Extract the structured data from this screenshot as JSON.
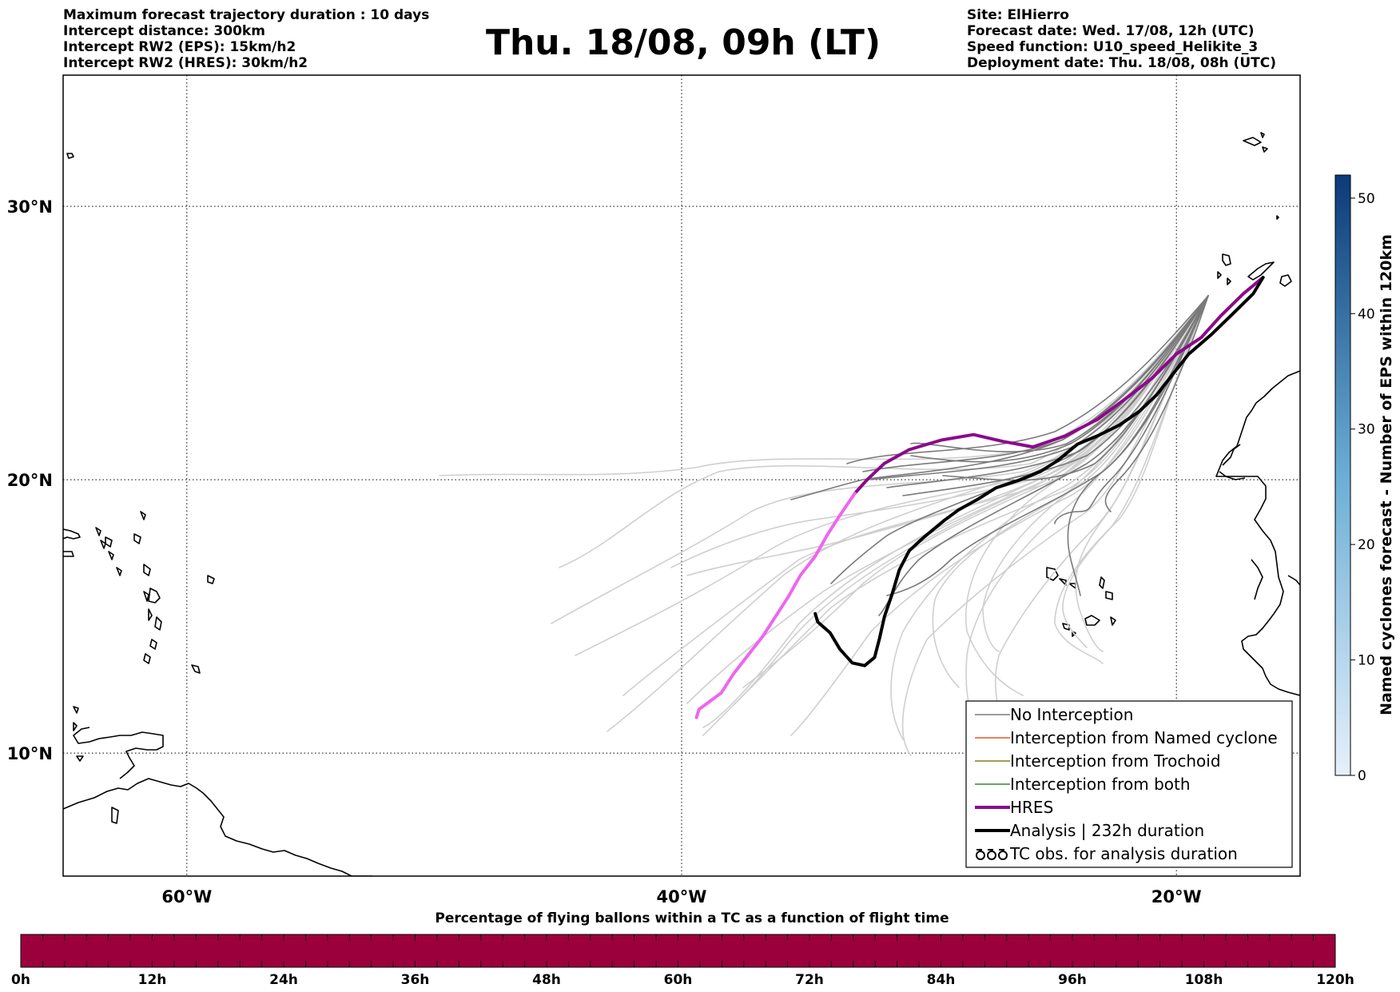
{
  "header": {
    "left_lines": [
      "Maximum forecast trajectory duration : 10 days",
      "Intercept distance: 300km",
      "Intercept RW2 (EPS):  15km/h2",
      "Intercept RW2 (HRES): 30km/h2"
    ],
    "title": "Thu. 18/08, 09h (LT)",
    "right_lines": [
      "Site: ElHierro",
      "Forecast date: Wed. 17/08, 12h (UTC)",
      "Speed function: U10_speed_Helikite_3",
      "Deployment date: Thu. 18/08, 08h (UTC)"
    ]
  },
  "map": {
    "lon_range": [
      -65,
      -15
    ],
    "lat_range": [
      5.5,
      34.8
    ],
    "lon_ticks": [
      {
        "value": -60,
        "label": "60°W"
      },
      {
        "value": -40,
        "label": "40°W"
      },
      {
        "value": -20,
        "label": "20°W"
      }
    ],
    "lat_ticks": [
      {
        "value": 30,
        "label": "30°N"
      },
      {
        "value": 20,
        "label": "20°N"
      },
      {
        "value": 10,
        "label": "10°N"
      }
    ],
    "grid": true
  },
  "colors": {
    "no_interception_recent": "#7a7a7a",
    "no_interception_late": "#cfcfcf",
    "named_cyclone": "#e8562a",
    "trochoid": "#7f7f22",
    "both": "#2e8b2e",
    "hres": "#8b0a8b",
    "hres_late": "#ee66ee",
    "analysis": "#000000",
    "percentage_bar": "#9c003c"
  },
  "chart_data": {
    "type": "line",
    "series": [
      {
        "name": "HRES",
        "points": [
          [
            -16.5,
            27.4
          ],
          [
            -17.3,
            26.8
          ],
          [
            -18.2,
            26.0
          ],
          [
            -19.0,
            25.2
          ],
          [
            -20.0,
            24.6
          ],
          [
            -21.0,
            23.7
          ],
          [
            -22.0,
            23.0
          ],
          [
            -23.2,
            22.2
          ],
          [
            -24.5,
            21.6
          ],
          [
            -25.8,
            21.2
          ],
          [
            -27.0,
            21.4
          ],
          [
            -28.2,
            21.65
          ],
          [
            -29.5,
            21.45
          ],
          [
            -30.8,
            21.1
          ],
          [
            -31.8,
            20.6
          ],
          [
            -32.5,
            20.0
          ],
          [
            -33.0,
            19.5
          ],
          [
            -33.6,
            18.7
          ],
          [
            -34.1,
            18.0
          ],
          [
            -34.6,
            17.2
          ],
          [
            -35.2,
            16.5
          ],
          [
            -35.7,
            15.7
          ],
          [
            -36.2,
            15.0
          ],
          [
            -36.7,
            14.3
          ],
          [
            -37.3,
            13.6
          ],
          [
            -37.9,
            12.9
          ],
          [
            -38.4,
            12.2
          ],
          [
            -39.0,
            11.8
          ],
          [
            -39.3,
            11.6
          ],
          [
            -39.4,
            11.3
          ]
        ]
      },
      {
        "name": "Analysis | 232h duration",
        "points": [
          [
            -16.5,
            27.4
          ],
          [
            -16.9,
            26.8
          ],
          [
            -17.8,
            26.0
          ],
          [
            -18.6,
            25.3
          ],
          [
            -19.5,
            24.6
          ],
          [
            -20.2,
            23.8
          ],
          [
            -20.8,
            23.1
          ],
          [
            -21.5,
            22.5
          ],
          [
            -22.3,
            22.0
          ],
          [
            -23.2,
            21.6
          ],
          [
            -24.0,
            21.3
          ],
          [
            -24.8,
            20.7
          ],
          [
            -25.5,
            20.3
          ],
          [
            -26.3,
            20.0
          ],
          [
            -27.3,
            19.7
          ],
          [
            -28.0,
            19.3
          ],
          [
            -28.8,
            18.9
          ],
          [
            -29.4,
            18.5
          ],
          [
            -30.2,
            17.9
          ],
          [
            -30.8,
            17.4
          ],
          [
            -31.2,
            16.7
          ],
          [
            -31.5,
            15.8
          ],
          [
            -31.8,
            15.0
          ],
          [
            -32.0,
            14.2
          ],
          [
            -32.2,
            13.5
          ],
          [
            -32.6,
            13.2
          ],
          [
            -33.1,
            13.3
          ],
          [
            -33.6,
            13.8
          ],
          [
            -34.0,
            14.4
          ],
          [
            -34.5,
            14.8
          ],
          [
            -34.6,
            15.1
          ]
        ]
      }
    ]
  },
  "legend": {
    "items": [
      {
        "label": "No Interception",
        "style": "thin",
        "color_key": "no_interception_recent"
      },
      {
        "label": "Interception from Named cyclone",
        "style": "thin",
        "color_key": "named_cyclone"
      },
      {
        "label": "Interception from Trochoid",
        "style": "thin",
        "color_key": "trochoid"
      },
      {
        "label": "Interception from both",
        "style": "thin",
        "color_key": "both"
      },
      {
        "label": "HRES",
        "style": "thick",
        "color_key": "hres"
      },
      {
        "label": "Analysis | 232h duration",
        "style": "thick",
        "color_key": "analysis"
      },
      {
        "label": "TC obs. for analysis duration",
        "style": "symbol",
        "color_key": "analysis"
      }
    ]
  },
  "colorbar": {
    "label": "Named cyclones forecast - Number of EPS within 120km",
    "min": 0,
    "max": 52,
    "ticks": [
      0,
      10,
      20,
      30,
      40,
      50
    ],
    "color_low": "#e6f0fa",
    "color_high": "#0b3a78"
  },
  "percentage_bar": {
    "title": "Percentage of flying ballons within a TC as a function of flight time",
    "tick_labels": [
      "0h",
      "12h",
      "24h",
      "36h",
      "48h",
      "60h",
      "72h",
      "84h",
      "96h",
      "108h",
      "120h"
    ],
    "minor_segments": 60
  }
}
